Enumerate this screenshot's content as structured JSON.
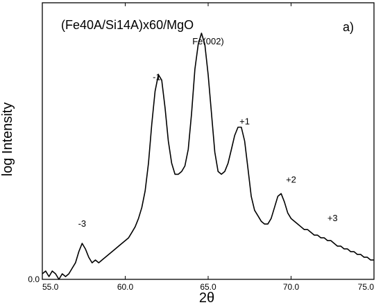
{
  "chart_data": {
    "type": "line",
    "title": "(Fe40A/Si14A)x60/MgO",
    "panel_label": "a)",
    "xlabel": "2θ",
    "ylabel": "log Intensity",
    "xlim": [
      55.0,
      75.0
    ],
    "ylim": [
      0.0,
      1.0
    ],
    "xticks": [
      55.0,
      60.0,
      65.0,
      70.0,
      75.0
    ],
    "xtick_labels": [
      "55.0",
      "60.0",
      "65.0",
      "70.0",
      "75.0"
    ],
    "ytick_labels": [
      "0.0"
    ],
    "grid": false,
    "line_color": "#000000",
    "annotations": [
      {
        "text": "-3",
        "x": 57.4,
        "y": 0.19
      },
      {
        "text": "-1",
        "x": 61.9,
        "y": 0.72
      },
      {
        "text": "Fe(002)",
        "x": 65.0,
        "y": 0.85
      },
      {
        "text": "+1",
        "x": 67.2,
        "y": 0.56
      },
      {
        "text": "+2",
        "x": 70.0,
        "y": 0.35
      },
      {
        "text": "+3",
        "x": 72.5,
        "y": 0.21
      }
    ],
    "series": [
      {
        "x": [
          55.0,
          55.2,
          55.4,
          55.6,
          55.8,
          56.0,
          56.2,
          56.4,
          56.6,
          56.8,
          57.0,
          57.2,
          57.4,
          57.6,
          57.8,
          58.0,
          58.2,
          58.4,
          58.6,
          58.8,
          59.0,
          59.2,
          59.4,
          59.6,
          59.8,
          60.0,
          60.2,
          60.4,
          60.6,
          60.8,
          61.0,
          61.2,
          61.4,
          61.6,
          61.8,
          62.0,
          62.2,
          62.4,
          62.6,
          62.8,
          63.0,
          63.2,
          63.4,
          63.6,
          63.8,
          64.0,
          64.2,
          64.4,
          64.6,
          64.8,
          65.0,
          65.2,
          65.4,
          65.6,
          65.8,
          66.0,
          66.2,
          66.4,
          66.6,
          66.8,
          67.0,
          67.2,
          67.4,
          67.6,
          67.8,
          68.0,
          68.2,
          68.4,
          68.6,
          68.8,
          69.0,
          69.2,
          69.4,
          69.6,
          69.8,
          70.0,
          70.2,
          70.4,
          70.6,
          70.8,
          71.0,
          71.2,
          71.4,
          71.6,
          71.8,
          72.0,
          72.2,
          72.4,
          72.6,
          72.8,
          73.0,
          73.2,
          73.4,
          73.6,
          73.8,
          74.0,
          74.2,
          74.4,
          74.6,
          74.8,
          75.0
        ],
        "y": [
          0.02,
          0.03,
          0.01,
          0.03,
          0.02,
          0.0,
          0.02,
          0.01,
          0.02,
          0.04,
          0.06,
          0.1,
          0.13,
          0.11,
          0.08,
          0.06,
          0.07,
          0.06,
          0.07,
          0.08,
          0.09,
          0.1,
          0.11,
          0.12,
          0.13,
          0.14,
          0.15,
          0.17,
          0.19,
          0.22,
          0.26,
          0.32,
          0.42,
          0.56,
          0.68,
          0.74,
          0.72,
          0.62,
          0.5,
          0.42,
          0.38,
          0.38,
          0.39,
          0.41,
          0.47,
          0.6,
          0.76,
          0.85,
          0.89,
          0.85,
          0.74,
          0.6,
          0.46,
          0.39,
          0.38,
          0.39,
          0.42,
          0.47,
          0.52,
          0.55,
          0.55,
          0.5,
          0.4,
          0.3,
          0.25,
          0.23,
          0.21,
          0.2,
          0.2,
          0.22,
          0.26,
          0.3,
          0.31,
          0.28,
          0.24,
          0.22,
          0.21,
          0.2,
          0.19,
          0.18,
          0.18,
          0.17,
          0.16,
          0.16,
          0.15,
          0.15,
          0.14,
          0.14,
          0.13,
          0.12,
          0.12,
          0.11,
          0.11,
          0.1,
          0.1,
          0.09,
          0.09,
          0.08,
          0.08,
          0.07,
          0.07
        ]
      }
    ]
  }
}
